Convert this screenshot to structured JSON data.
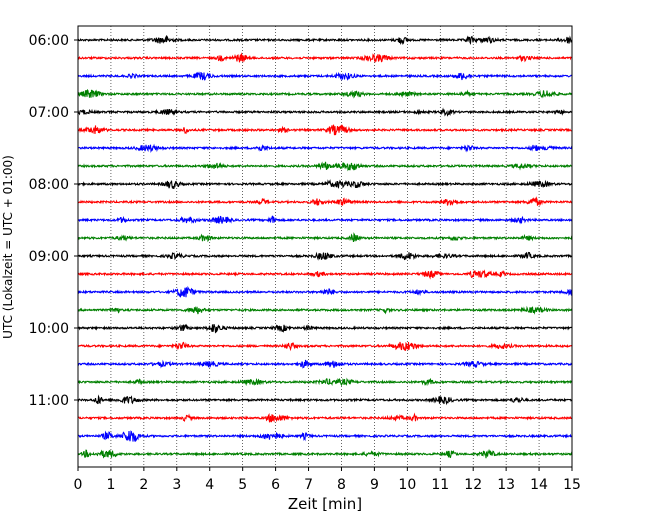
{
  "chart_data": {
    "type": "line",
    "subtype": "helicorder-seismogram",
    "title": "",
    "xlabel": "Zeit  [min]",
    "ylabel": "UTC (Lokalzeit = UTC + 01:00)",
    "xlim": [
      0,
      15
    ],
    "x_ticks": [
      0,
      1,
      2,
      3,
      4,
      5,
      6,
      7,
      8,
      9,
      10,
      11,
      12,
      13,
      14,
      15
    ],
    "x_tick_labels": [
      "0",
      "1",
      "2",
      "3",
      "4",
      "5",
      "6",
      "7",
      "8",
      "9",
      "10",
      "11",
      "12",
      "13",
      "14",
      "15"
    ],
    "grid": "vertical dotted lines at each minute",
    "y_tick_labels": [
      "06:00",
      "07:00",
      "08:00",
      "09:00",
      "10:00",
      "11:00"
    ],
    "trace_interval_minutes": 15,
    "start_time": "06:00",
    "trace_count": 24,
    "color_cycle": [
      "#000000",
      "#ff0000",
      "#0000ff",
      "#008000"
    ],
    "series": [
      {
        "start": "06:00",
        "color": "#000000"
      },
      {
        "start": "06:15",
        "color": "#ff0000"
      },
      {
        "start": "06:30",
        "color": "#0000ff"
      },
      {
        "start": "06:45",
        "color": "#008000"
      },
      {
        "start": "07:00",
        "color": "#000000"
      },
      {
        "start": "07:15",
        "color": "#ff0000"
      },
      {
        "start": "07:30",
        "color": "#0000ff"
      },
      {
        "start": "07:45",
        "color": "#008000"
      },
      {
        "start": "08:00",
        "color": "#000000"
      },
      {
        "start": "08:15",
        "color": "#ff0000"
      },
      {
        "start": "08:30",
        "color": "#0000ff"
      },
      {
        "start": "08:45",
        "color": "#008000"
      },
      {
        "start": "09:00",
        "color": "#000000"
      },
      {
        "start": "09:15",
        "color": "#ff0000"
      },
      {
        "start": "09:30",
        "color": "#0000ff"
      },
      {
        "start": "09:45",
        "color": "#008000"
      },
      {
        "start": "10:00",
        "color": "#000000"
      },
      {
        "start": "10:15",
        "color": "#ff0000"
      },
      {
        "start": "10:30",
        "color": "#0000ff"
      },
      {
        "start": "10:45",
        "color": "#008000"
      },
      {
        "start": "11:00",
        "color": "#000000"
      },
      {
        "start": "11:15",
        "color": "#ff0000"
      },
      {
        "start": "11:30",
        "color": "#0000ff"
      },
      {
        "start": "11:45",
        "color": "#008000"
      }
    ]
  }
}
